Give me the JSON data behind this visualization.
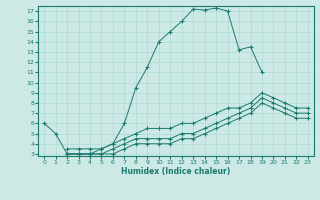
{
  "title": "",
  "xlabel": "Humidex (Indice chaleur)",
  "ylabel": "",
  "bg_color": "#cce9e5",
  "line_color": "#1a7a6e",
  "xlim": [
    -0.5,
    23.5
  ],
  "ylim": [
    2.8,
    17.5
  ],
  "yticks": [
    3,
    4,
    5,
    6,
    7,
    8,
    9,
    10,
    11,
    12,
    13,
    14,
    15,
    16,
    17
  ],
  "xticks": [
    0,
    1,
    2,
    3,
    4,
    5,
    6,
    7,
    8,
    9,
    10,
    11,
    12,
    13,
    14,
    15,
    16,
    17,
    18,
    19,
    20,
    21,
    22,
    23
  ],
  "lines": [
    {
      "x": [
        0,
        1,
        2,
        3,
        4,
        5,
        6,
        7,
        8,
        9,
        10,
        11,
        12,
        13,
        14,
        15,
        16,
        17,
        18,
        19
      ],
      "y": [
        6,
        5,
        3,
        3,
        3,
        3.5,
        4,
        6,
        9.5,
        11.5,
        14,
        15,
        16,
        17.2,
        17.1,
        17.3,
        17,
        13.2,
        13.5,
        11
      ]
    },
    {
      "x": [
        2,
        3,
        4,
        5,
        6,
        7,
        8,
        9,
        10,
        11,
        12,
        13,
        14,
        15,
        16,
        17,
        18,
        19,
        20,
        21,
        22,
        23
      ],
      "y": [
        3,
        3,
        3,
        3,
        3.5,
        4,
        4.5,
        4.5,
        4.5,
        4.5,
        5,
        5,
        5.5,
        6,
        6.5,
        7,
        7.5,
        8.5,
        8,
        7.5,
        7,
        7
      ]
    },
    {
      "x": [
        2,
        3,
        4,
        5,
        6,
        7,
        8,
        9,
        10,
        11,
        12,
        13,
        14,
        15,
        16,
        17,
        18,
        19,
        20,
        21,
        22,
        23
      ],
      "y": [
        3.5,
        3.5,
        3.5,
        3.5,
        4,
        4.5,
        5,
        5.5,
        5.5,
        5.5,
        6,
        6,
        6.5,
        7,
        7.5,
        7.5,
        8,
        9,
        8.5,
        8,
        7.5,
        7.5
      ]
    },
    {
      "x": [
        2,
        3,
        4,
        5,
        6,
        7,
        8,
        9,
        10,
        11,
        12,
        13,
        14,
        15,
        16,
        17,
        18,
        19,
        20,
        21,
        22,
        23
      ],
      "y": [
        3,
        3,
        3,
        3,
        3,
        3.5,
        4,
        4,
        4,
        4,
        4.5,
        4.5,
        5,
        5.5,
        6,
        6.5,
        7,
        8,
        7.5,
        7,
        6.5,
        6.5
      ]
    }
  ]
}
